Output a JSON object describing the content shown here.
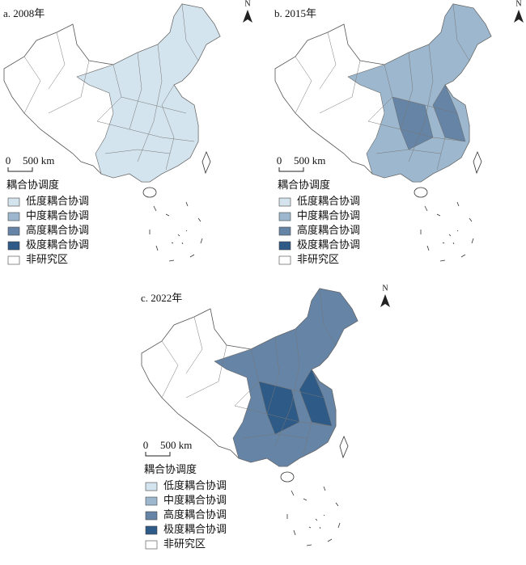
{
  "panels": [
    {
      "title": "a. 2008年",
      "north": "N",
      "scale": {
        "zero": "0",
        "length": "500 km"
      },
      "legend": {
        "title": "耦合协调度",
        "items": [
          {
            "label": "低度耦合协调",
            "color": "#d3e4ee"
          },
          {
            "label": "中度耦合协调",
            "color": "#9db8ce"
          },
          {
            "label": "高度耦合协调",
            "color": "#6584a6"
          },
          {
            "label": "极度耦合协调",
            "color": "#2d5a86"
          },
          {
            "label": "非研究区",
            "color": "#ffffff"
          }
        ]
      }
    },
    {
      "title": "b. 2015年",
      "north": "N",
      "scale": {
        "zero": "0",
        "length": "500 km"
      },
      "legend": {
        "title": "耦合协调度",
        "items": [
          {
            "label": "低度耦合协调",
            "color": "#d3e4ee"
          },
          {
            "label": "中度耦合协调",
            "color": "#9db8ce"
          },
          {
            "label": "高度耦合协调",
            "color": "#6584a6"
          },
          {
            "label": "极度耦合协调",
            "color": "#2d5a86"
          },
          {
            "label": "非研究区",
            "color": "#ffffff"
          }
        ]
      }
    },
    {
      "title": "c. 2022年",
      "north": "N",
      "scale": {
        "zero": "0",
        "length": "500 km"
      },
      "legend": {
        "title": "耦合协调度",
        "items": [
          {
            "label": "低度耦合协调",
            "color": "#d3e4ee"
          },
          {
            "label": "中度耦合协调",
            "color": "#9db8ce"
          },
          {
            "label": "高度耦合协调",
            "color": "#6584a6"
          },
          {
            "label": "极度耦合协调",
            "color": "#2d5a86"
          },
          {
            "label": "非研究区",
            "color": "#ffffff"
          }
        ]
      }
    }
  ]
}
